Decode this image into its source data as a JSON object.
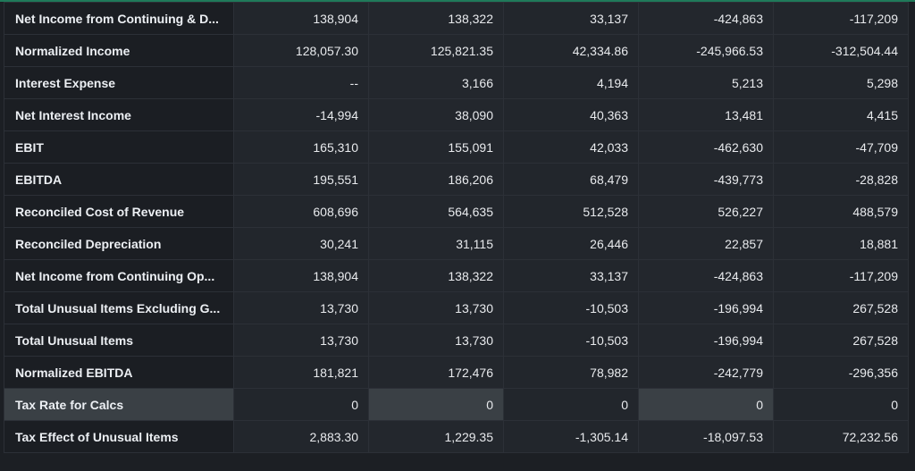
{
  "rows": [
    {
      "label": "Net Income from Continuing & D...",
      "values": [
        "138,904",
        "138,322",
        "33,137",
        "-424,863",
        "-117,209"
      ]
    },
    {
      "label": "Normalized Income",
      "values": [
        "128,057.30",
        "125,821.35",
        "42,334.86",
        "-245,966.53",
        "-312,504.44"
      ]
    },
    {
      "label": "Interest Expense",
      "values": [
        "--",
        "3,166",
        "4,194",
        "5,213",
        "5,298"
      ]
    },
    {
      "label": "Net Interest Income",
      "values": [
        "-14,994",
        "38,090",
        "40,363",
        "13,481",
        "4,415"
      ]
    },
    {
      "label": "EBIT",
      "values": [
        "165,310",
        "155,091",
        "42,033",
        "-462,630",
        "-47,709"
      ]
    },
    {
      "label": "EBITDA",
      "values": [
        "195,551",
        "186,206",
        "68,479",
        "-439,773",
        "-28,828"
      ]
    },
    {
      "label": "Reconciled Cost of Revenue",
      "values": [
        "608,696",
        "564,635",
        "512,528",
        "526,227",
        "488,579"
      ]
    },
    {
      "label": "Reconciled Depreciation",
      "values": [
        "30,241",
        "31,115",
        "26,446",
        "22,857",
        "18,881"
      ]
    },
    {
      "label": "Net Income from Continuing Op...",
      "values": [
        "138,904",
        "138,322",
        "33,137",
        "-424,863",
        "-117,209"
      ]
    },
    {
      "label": "Total Unusual Items Excluding G...",
      "values": [
        "13,730",
        "13,730",
        "-10,503",
        "-196,994",
        "267,528"
      ]
    },
    {
      "label": "Total Unusual Items",
      "values": [
        "13,730",
        "13,730",
        "-10,503",
        "-196,994",
        "267,528"
      ]
    },
    {
      "label": "Normalized EBITDA",
      "values": [
        "181,821",
        "172,476",
        "78,982",
        "-242,779",
        "-296,356"
      ]
    },
    {
      "label": "Tax Rate for Calcs",
      "values": [
        "0",
        "0",
        "0",
        "0",
        "0"
      ]
    },
    {
      "label": "Tax Effect of Unusual Items",
      "values": [
        "2,883.30",
        "1,229.35",
        "-1,305.14",
        "-18,097.53",
        "72,232.56"
      ]
    }
  ],
  "highlighted_row": 12,
  "colors": {
    "background": "#1c1f24",
    "accent": "#1f7a5a",
    "highlight_row": "#3a4045"
  }
}
